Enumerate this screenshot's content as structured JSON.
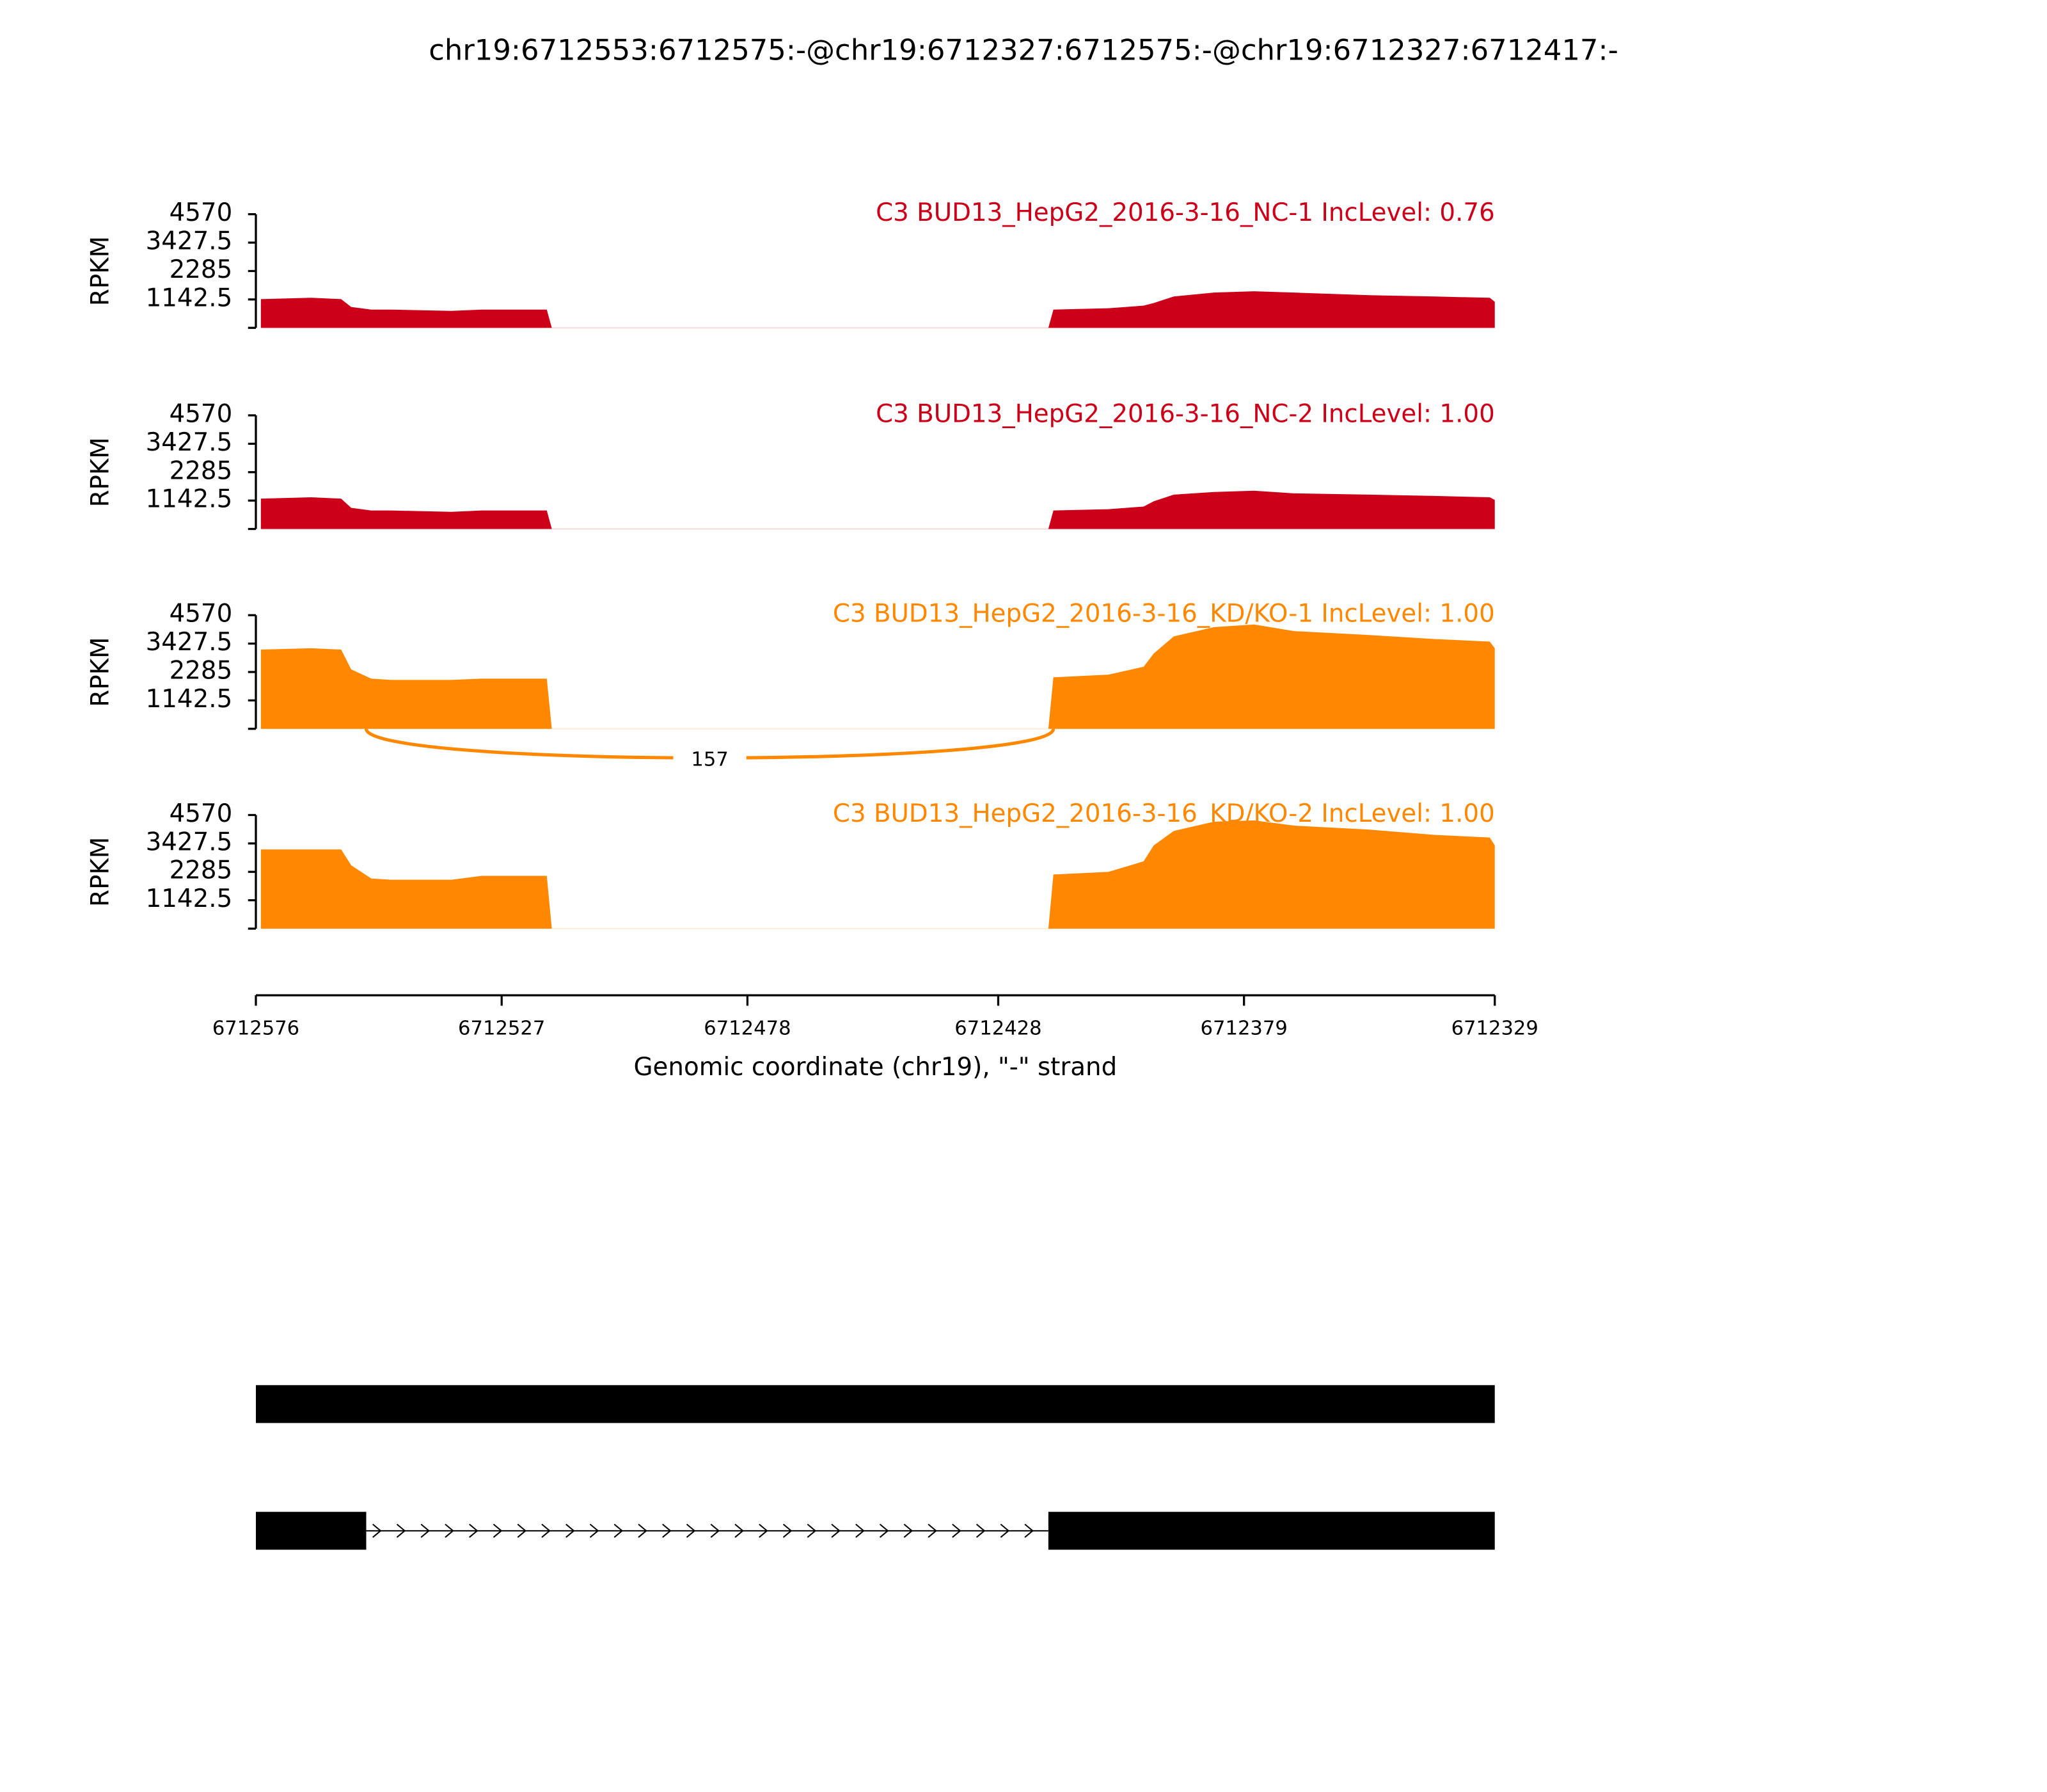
{
  "title": "chr19:6712553:6712575:-@chr19:6712327:6712575:-@chr19:6712327:6712417:-",
  "x_axis": {
    "label": "Genomic coordinate (chr19), \"-\" strand",
    "xlim": [
      6712576,
      6712329
    ],
    "xticks": [
      6712576,
      6712527,
      6712478,
      6712428,
      6712379,
      6712329
    ]
  },
  "chart_data": [
    {
      "type": "area",
      "title": "C3 BUD13_HepG2_2016-3-16_NC-1 IncLevel: 0.76",
      "ylabel": "RPKM",
      "color": "#cc0018",
      "ylim": [
        0,
        4570
      ],
      "yticks": [
        1142.5,
        2285,
        3427.5,
        4570
      ],
      "x": [
        6712575,
        6712565,
        6712559,
        6712557,
        6712553,
        6712549,
        6712537,
        6712531,
        6712518,
        6712517,
        6712418,
        6712417,
        6712406,
        6712399,
        6712397,
        6712393,
        6712385,
        6712377,
        6712369,
        6712354,
        6712341,
        6712330,
        6712329
      ],
      "values": [
        1155,
        1208,
        1155,
        840,
        735,
        735,
        683,
        735,
        735,
        0,
        0,
        735,
        788,
        893,
        998,
        1260,
        1418,
        1470,
        1418,
        1313,
        1260,
        1208,
        1050
      ]
    },
    {
      "type": "area",
      "title": "C3 BUD13_HepG2_2016-3-16_NC-2 IncLevel: 1.00",
      "ylabel": "RPKM",
      "color": "#cc0018",
      "ylim": [
        0,
        4570
      ],
      "yticks": [
        1142.5,
        2285,
        3427.5,
        4570
      ],
      "x": [
        6712575,
        6712565,
        6712559,
        6712557,
        6712553,
        6712549,
        6712537,
        6712531,
        6712518,
        6712517,
        6712418,
        6712417,
        6712406,
        6712399,
        6712397,
        6712393,
        6712385,
        6712377,
        6712369,
        6712354,
        6712341,
        6712330,
        6712329
      ],
      "values": [
        1221,
        1275,
        1221,
        850,
        743,
        743,
        690,
        743,
        743,
        0,
        0,
        743,
        797,
        903,
        1115,
        1381,
        1487,
        1540,
        1434,
        1381,
        1328,
        1275,
        1168
      ]
    },
    {
      "type": "area",
      "title": "C3 BUD13_HepG2_2016-3-16_KD/KO-1 IncLevel: 1.00",
      "ylabel": "RPKM",
      "color": "#ff8800",
      "ylim": [
        0,
        4570
      ],
      "yticks": [
        1142.5,
        2285,
        3427.5,
        4570
      ],
      "x": [
        6712575,
        6712565,
        6712559,
        6712557,
        6712553,
        6712549,
        6712537,
        6712531,
        6712518,
        6712517,
        6712418,
        6712417,
        6712406,
        6712399,
        6712397,
        6712393,
        6712385,
        6712377,
        6712369,
        6712354,
        6712341,
        6712330,
        6712329
      ],
      "values": [
        3187,
        3240,
        3187,
        2390,
        2018,
        1965,
        1965,
        2018,
        2018,
        0,
        0,
        2072,
        2178,
        2496,
        3027,
        3718,
        4089,
        4195,
        3930,
        3771,
        3612,
        3506,
        3240
      ],
      "junctions": [
        {
          "start": 6712554,
          "end": 6712417,
          "count": 157
        }
      ]
    },
    {
      "type": "area",
      "title": "C3 BUD13_HepG2_2016-3-16_KD/KO-2 IncLevel: 1.00",
      "ylabel": "RPKM",
      "color": "#ff8800",
      "ylim": [
        0,
        4570
      ],
      "yticks": [
        1142.5,
        2285,
        3427.5,
        4570
      ],
      "x": [
        6712575,
        6712565,
        6712559,
        6712557,
        6712553,
        6712549,
        6712537,
        6712531,
        6712518,
        6712517,
        6712418,
        6712417,
        6712406,
        6712399,
        6712397,
        6712393,
        6712385,
        6712377,
        6712369,
        6712354,
        6712341,
        6712330,
        6712329
      ],
      "values": [
        3187,
        3187,
        3187,
        2550,
        2018,
        1965,
        1965,
        2124,
        2124,
        0,
        0,
        2178,
        2284,
        2709,
        3346,
        3930,
        4302,
        4355,
        4143,
        3983,
        3771,
        3665,
        3346
      ]
    }
  ],
  "gene_models": [
    {
      "exons": [
        [
          6712576,
          6712329
        ]
      ]
    },
    {
      "exons": [
        [
          6712576,
          6712554
        ],
        [
          6712418,
          6712329
        ]
      ]
    }
  ]
}
